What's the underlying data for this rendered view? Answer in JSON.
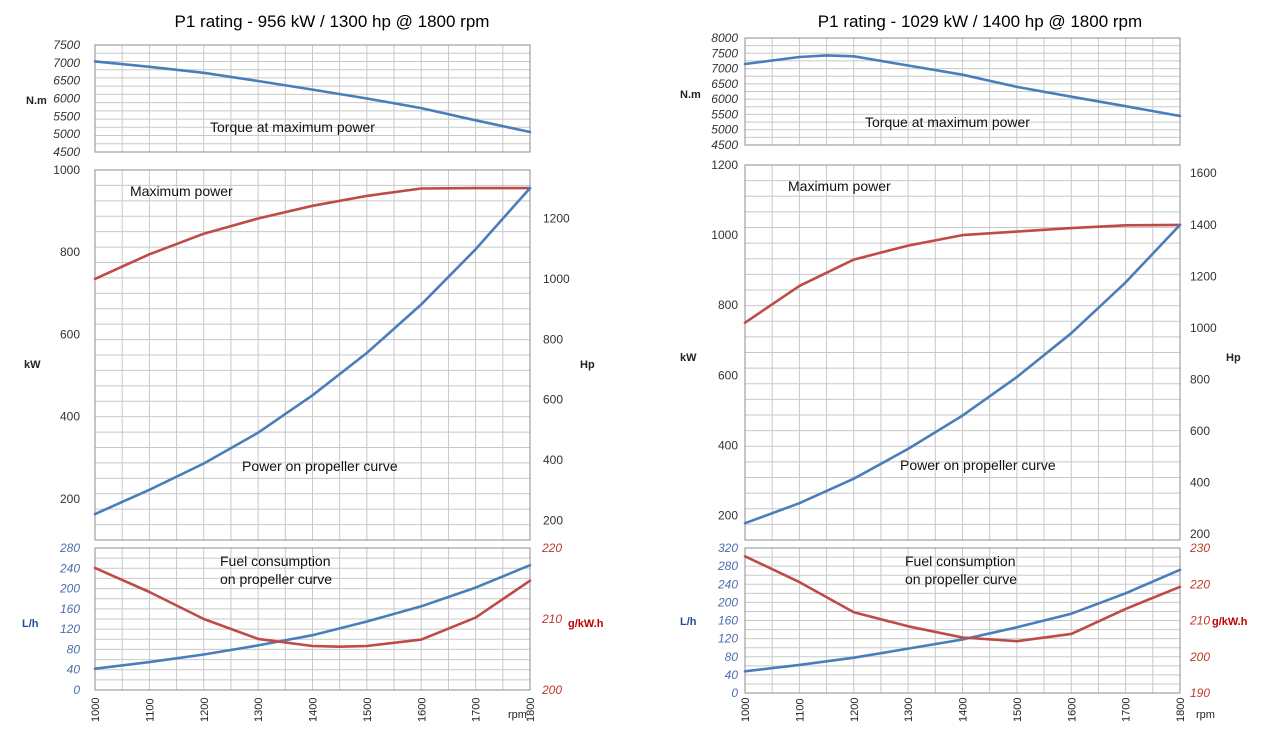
{
  "colors": {
    "blue": "#4a7ebb",
    "red": "#be4b48",
    "grid": "#c8c8c8",
    "axis_blue": "#4a6fae",
    "axis_red": "#c0392b",
    "unit_blue": "#1f4e9c",
    "unit_red": "#c00000"
  },
  "chart_data": [
    {
      "title": "P1 rating - 956 kW / 1300 hp @ 1800 rpm",
      "x_ticks": [
        1000,
        1100,
        1200,
        1300,
        1400,
        1500,
        1600,
        1700,
        1800
      ],
      "x_unit": "rpm",
      "panels": [
        {
          "type": "line",
          "annotation": "Torque at maximum power",
          "left_axis": {
            "label": "N.m",
            "ticks": [
              4500,
              5000,
              5500,
              6000,
              6500,
              7000,
              7500
            ],
            "lim": [
              4500,
              7500
            ]
          },
          "series": [
            {
              "color_key": "blue",
              "axis": "left",
              "x": [
                1000,
                1100,
                1200,
                1300,
                1400,
                1500,
                1600,
                1700,
                1800
              ],
              "values": [
                7040,
                6890,
                6720,
                6490,
                6250,
                6000,
                5730,
                5390,
                5060
              ]
            }
          ]
        },
        {
          "type": "line",
          "annotation_top": "Maximum power",
          "annotation_bottom": "Power on propeller curve",
          "left_axis": {
            "label": "kW",
            "ticks": [
              200,
              400,
              600,
              800,
              1000
            ],
            "lim": [
              100,
              1000
            ]
          },
          "right_axis": {
            "label": "Hp",
            "ticks": [
              200,
              400,
              600,
              800,
              1000,
              1200
            ],
            "lim": [
              136,
              1360
            ]
          },
          "series": [
            {
              "color_key": "red",
              "axis": "left",
              "x": [
                1000,
                1100,
                1200,
                1300,
                1400,
                1500,
                1600,
                1700,
                1800
              ],
              "values": [
                735,
                795,
                845,
                882,
                913,
                937,
                955,
                956,
                956
              ]
            },
            {
              "color_key": "blue",
              "axis": "left",
              "x": [
                1000,
                1100,
                1200,
                1300,
                1400,
                1500,
                1600,
                1700,
                1800
              ],
              "values": [
                163,
                222,
                286,
                361,
                452,
                555,
                673,
                807,
                956
              ]
            }
          ]
        },
        {
          "type": "line",
          "annotation": [
            "Fuel consumption",
            "on propeller curve"
          ],
          "left_axis": {
            "label": "L/h",
            "ticks": [
              0,
              40,
              80,
              120,
              160,
              200,
              240,
              280
            ],
            "lim": [
              0,
              280
            ]
          },
          "right_axis": {
            "label": "g/kW.h",
            "ticks": [
              200,
              210,
              220
            ],
            "lim": [
              200,
              220
            ]
          },
          "series": [
            {
              "color_key": "blue",
              "axis": "left",
              "x": [
                1000,
                1100,
                1200,
                1300,
                1400,
                1500,
                1600,
                1700,
                1800
              ],
              "values": [
                42,
                55,
                70,
                88,
                108,
                135,
                165,
                202,
                246
              ]
            },
            {
              "color_key": "red",
              "axis": "right",
              "x": [
                1000,
                1100,
                1200,
                1300,
                1400,
                1450,
                1500,
                1600,
                1700,
                1800
              ],
              "values": [
                217.2,
                213.8,
                210.0,
                207.2,
                206.2,
                206.1,
                206.2,
                207.1,
                210.2,
                215.4
              ]
            }
          ]
        }
      ]
    },
    {
      "title": "P1 rating - 1029 kW / 1400 hp @ 1800 rpm",
      "x_ticks": [
        1000,
        1100,
        1200,
        1300,
        1400,
        1500,
        1600,
        1700,
        1800
      ],
      "x_unit": "rpm",
      "panels": [
        {
          "type": "line",
          "annotation": "Torque at maximum power",
          "left_axis": {
            "label": "N.m",
            "ticks": [
              4500,
              5000,
              5500,
              6000,
              6500,
              7000,
              7500,
              8000
            ],
            "lim": [
              4500,
              8000
            ]
          },
          "series": [
            {
              "color_key": "blue",
              "axis": "left",
              "x": [
                1000,
                1100,
                1150,
                1200,
                1300,
                1400,
                1500,
                1600,
                1700,
                1800
              ],
              "values": [
                7150,
                7380,
                7430,
                7400,
                7100,
                6800,
                6400,
                6080,
                5770,
                5450
              ]
            }
          ]
        },
        {
          "type": "line",
          "annotation_top": "Maximum power",
          "annotation_bottom": "Power on propeller curve",
          "left_axis": {
            "label": "kW",
            "ticks": [
              200,
              400,
              600,
              800,
              1000,
              1200
            ],
            "lim": [
              130,
              1200
            ]
          },
          "right_axis": {
            "label": "Hp",
            "ticks": [
              200,
              400,
              600,
              800,
              1000,
              1200,
              1400,
              1600
            ],
            "lim": [
              177,
              1632
            ]
          },
          "series": [
            {
              "color_key": "red",
              "axis": "left",
              "x": [
                1000,
                1100,
                1200,
                1300,
                1400,
                1500,
                1600,
                1700,
                1800
              ],
              "values": [
                750,
                855,
                930,
                970,
                1000,
                1010,
                1020,
                1028,
                1029
              ]
            },
            {
              "color_key": "blue",
              "axis": "left",
              "x": [
                1000,
                1100,
                1200,
                1300,
                1400,
                1500,
                1600,
                1700,
                1800
              ],
              "values": [
                178,
                235,
                305,
                390,
                485,
                595,
                720,
                865,
                1029
              ]
            }
          ]
        },
        {
          "type": "line",
          "annotation": [
            "Fuel consumption",
            "on propeller curve"
          ],
          "left_axis": {
            "label": "L/h",
            "ticks": [
              0,
              40,
              80,
              120,
              160,
              200,
              240,
              280,
              320
            ],
            "lim": [
              0,
              320
            ]
          },
          "right_axis": {
            "label": "g/kW.h",
            "ticks": [
              190,
              200,
              210,
              220,
              230
            ],
            "lim": [
              190,
              230
            ]
          },
          "series": [
            {
              "color_key": "blue",
              "axis": "left",
              "x": [
                1000,
                1100,
                1200,
                1300,
                1400,
                1500,
                1600,
                1700,
                1800
              ],
              "values": [
                48,
                62,
                78,
                98,
                118,
                145,
                175,
                220,
                272
              ]
            },
            {
              "color_key": "red",
              "axis": "right",
              "x": [
                1000,
                1100,
                1200,
                1300,
                1400,
                1500,
                1600,
                1700,
                1800
              ],
              "values": [
                227.7,
                220.6,
                212.3,
                208.4,
                205.3,
                204.3,
                206.3,
                213.2,
                219.3
              ]
            }
          ]
        }
      ]
    }
  ]
}
